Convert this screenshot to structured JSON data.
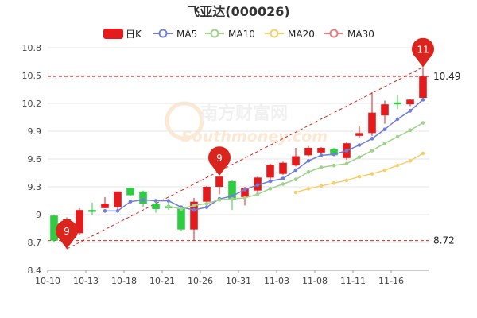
{
  "chart_data": {
    "type": "candlestick",
    "title": "飞亚达(000026)",
    "legend": [
      {
        "key": "candle",
        "label": "日K",
        "color": "#e41a1c"
      },
      {
        "key": "ma5",
        "label": "MA5",
        "color": "#6f7fd6"
      },
      {
        "key": "ma10",
        "label": "MA10",
        "color": "#9fd28a"
      },
      {
        "key": "ma20",
        "label": "MA20",
        "color": "#f5cf6b"
      },
      {
        "key": "ma30",
        "label": "MA30",
        "color": "#ee7b7b"
      }
    ],
    "ylim": [
      8.4,
      10.8
    ],
    "yticks": [
      "8.4",
      "8.7",
      "9",
      "9.3",
      "9.6",
      "9.9",
      "10.2",
      "10.5",
      "10.8"
    ],
    "xticks": [
      {
        "label": "10-10",
        "index": 0
      },
      {
        "label": "10-13",
        "index": 3
      },
      {
        "label": "10-18",
        "index": 6
      },
      {
        "label": "10-21",
        "index": 9
      },
      {
        "label": "10-26",
        "index": 12
      },
      {
        "label": "10-31",
        "index": 15
      },
      {
        "label": "11-03",
        "index": 18
      },
      {
        "label": "11-08",
        "index": 21
      },
      {
        "label": "11-11",
        "index": 24
      },
      {
        "label": "11-16",
        "index": 27
      }
    ],
    "candles": [
      {
        "o": 8.99,
        "c": 8.72,
        "h": 9.0,
        "l": 8.7
      },
      {
        "o": 8.8,
        "c": 8.95,
        "h": 8.97,
        "l": 8.63
      },
      {
        "o": 8.8,
        "c": 9.05,
        "h": 9.07,
        "l": 8.78
      },
      {
        "o": 9.05,
        "c": 9.03,
        "h": 9.13,
        "l": 9.0
      },
      {
        "o": 9.07,
        "c": 9.12,
        "h": 9.19,
        "l": 9.07
      },
      {
        "o": 9.08,
        "c": 9.25,
        "h": 9.25,
        "l": 9.05
      },
      {
        "o": 9.29,
        "c": 9.21,
        "h": 9.29,
        "l": 9.2
      },
      {
        "o": 9.25,
        "c": 9.12,
        "h": 9.26,
        "l": 9.08
      },
      {
        "o": 9.12,
        "c": 9.06,
        "h": 9.14,
        "l": 9.02
      },
      {
        "o": 9.09,
        "c": 9.07,
        "h": 9.15,
        "l": 9.05
      },
      {
        "o": 9.07,
        "c": 8.84,
        "h": 9.09,
        "l": 8.82
      },
      {
        "o": 8.84,
        "c": 9.14,
        "h": 9.18,
        "l": 8.72
      },
      {
        "o": 9.14,
        "c": 9.3,
        "h": 9.31,
        "l": 9.1
      },
      {
        "o": 9.3,
        "c": 9.41,
        "h": 9.42,
        "l": 9.22
      },
      {
        "o": 9.36,
        "c": 9.16,
        "h": 9.37,
        "l": 9.05
      },
      {
        "o": 9.19,
        "c": 9.29,
        "h": 9.3,
        "l": 9.1
      },
      {
        "o": 9.26,
        "c": 9.4,
        "h": 9.41,
        "l": 9.2
      },
      {
        "o": 9.4,
        "c": 9.54,
        "h": 9.55,
        "l": 9.37
      },
      {
        "o": 9.44,
        "c": 9.56,
        "h": 9.57,
        "l": 9.43
      },
      {
        "o": 9.53,
        "c": 9.63,
        "h": 9.72,
        "l": 9.52
      },
      {
        "o": 9.64,
        "c": 9.72,
        "h": 9.74,
        "l": 9.63
      },
      {
        "o": 9.67,
        "c": 9.72,
        "h": 9.73,
        "l": 9.66
      },
      {
        "o": 9.71,
        "c": 9.64,
        "h": 9.72,
        "l": 9.63
      },
      {
        "o": 9.61,
        "c": 9.77,
        "h": 9.78,
        "l": 9.59
      },
      {
        "o": 9.85,
        "c": 9.88,
        "h": 9.95,
        "l": 9.83
      },
      {
        "o": 9.88,
        "c": 10.1,
        "h": 10.32,
        "l": 9.85
      },
      {
        "o": 10.07,
        "c": 10.19,
        "h": 10.23,
        "l": 9.98
      },
      {
        "o": 10.21,
        "c": 10.19,
        "h": 10.29,
        "l": 10.14
      },
      {
        "o": 10.19,
        "c": 10.24,
        "h": 10.25,
        "l": 10.17
      },
      {
        "o": 10.26,
        "c": 10.49,
        "h": 10.59,
        "l": 10.25
      }
    ],
    "ma5": [
      null,
      null,
      null,
      null,
      9.04,
      9.04,
      9.14,
      9.16,
      9.15,
      9.15,
      9.08,
      9.05,
      9.08,
      9.17,
      9.2,
      9.27,
      9.32,
      9.36,
      9.39,
      9.48,
      9.58,
      9.64,
      9.65,
      9.69,
      9.75,
      9.82,
      9.92,
      10.03,
      10.12,
      10.24
    ],
    "ma10": [
      null,
      null,
      null,
      null,
      null,
      null,
      null,
      null,
      null,
      9.09,
      9.06,
      9.1,
      9.12,
      9.16,
      9.17,
      9.18,
      9.22,
      9.28,
      9.33,
      9.38,
      9.46,
      9.51,
      9.53,
      9.55,
      9.62,
      9.69,
      9.77,
      9.84,
      9.91,
      9.99
    ],
    "ma20": [
      null,
      null,
      null,
      null,
      null,
      null,
      null,
      null,
      null,
      null,
      null,
      null,
      null,
      null,
      null,
      null,
      null,
      null,
      null,
      9.24,
      9.28,
      9.31,
      9.34,
      9.37,
      9.41,
      9.44,
      9.48,
      9.53,
      9.58,
      9.66
    ],
    "ma30": [],
    "ref_lines": [
      {
        "value": 10.49,
        "label": "10.49"
      },
      {
        "value": 8.72,
        "label": "8.72"
      }
    ],
    "trend_line": {
      "from": {
        "index": 1,
        "value": 8.63
      },
      "to": {
        "index": 29,
        "value": 10.59
      }
    },
    "markers": [
      {
        "index": 1,
        "value": 8.63,
        "label": "9",
        "kind": "low"
      },
      {
        "index": 13,
        "value": 9.42,
        "label": "9",
        "kind": "high"
      },
      {
        "index": 29,
        "value": 10.59,
        "label": "11",
        "kind": "high"
      }
    ],
    "colors": {
      "up": "#e41a1c",
      "down": "#2ecc40",
      "ref": "#d9251d",
      "grid": "#e6e6e6"
    }
  },
  "watermark": {
    "text": "南方财富网",
    "subtext": "Southmoney.com"
  }
}
